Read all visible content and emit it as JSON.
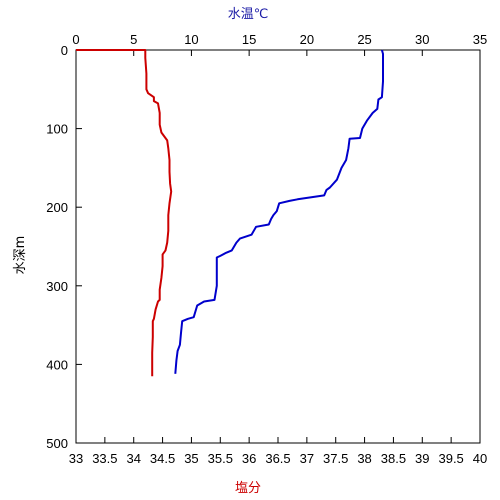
{
  "chart_data": {
    "type": "line",
    "axes": {
      "top": {
        "label": "水温℃",
        "label_color": "#1a1aa6",
        "range": [
          0,
          35
        ],
        "ticks": [
          "0",
          "5",
          "10",
          "15",
          "20",
          "25",
          "30",
          "35"
        ]
      },
      "bottom": {
        "label": "塩分",
        "label_color": "#cc0000",
        "range": [
          33,
          40
        ],
        "ticks": [
          "33",
          "33.5",
          "34",
          "34.5",
          "35",
          "35.5",
          "36",
          "36.5",
          "37",
          "37.5",
          "38",
          "38.5",
          "39",
          "39.5",
          "40"
        ]
      },
      "left": {
        "label": "水深m",
        "label_color": "#000000",
        "range": [
          0,
          500
        ],
        "inverted": true,
        "ticks": [
          "0",
          "100",
          "200",
          "300",
          "400",
          "500"
        ]
      }
    },
    "grid": false,
    "series": [
      {
        "quantity": "temperature",
        "axis": "top",
        "color": "#0000cc",
        "points": [
          [
            26.5,
            0
          ],
          [
            26.6,
            5
          ],
          [
            26.6,
            20
          ],
          [
            26.6,
            40
          ],
          [
            26.5,
            60
          ],
          [
            26.2,
            63
          ],
          [
            26.1,
            75
          ],
          [
            25.7,
            80
          ],
          [
            25.2,
            90
          ],
          [
            24.8,
            100
          ],
          [
            24.6,
            112
          ],
          [
            23.7,
            113
          ],
          [
            23.6,
            125
          ],
          [
            23.4,
            140
          ],
          [
            23.0,
            150
          ],
          [
            22.6,
            165
          ],
          [
            22.0,
            175
          ],
          [
            21.7,
            178
          ],
          [
            21.5,
            185
          ],
          [
            19.2,
            190
          ],
          [
            18.5,
            192
          ],
          [
            17.6,
            195
          ],
          [
            17.4,
            205
          ],
          [
            17.1,
            210
          ],
          [
            16.9,
            215
          ],
          [
            16.7,
            222
          ],
          [
            15.6,
            225
          ],
          [
            15.2,
            235
          ],
          [
            14.2,
            240
          ],
          [
            13.9,
            245
          ],
          [
            13.7,
            250
          ],
          [
            13.5,
            255
          ],
          [
            13.0,
            258
          ],
          [
            12.5,
            262
          ],
          [
            12.2,
            264
          ],
          [
            12.2,
            280
          ],
          [
            12.2,
            300
          ],
          [
            12.0,
            318
          ],
          [
            11.1,
            320
          ],
          [
            10.5,
            325
          ],
          [
            10.2,
            340
          ],
          [
            9.7,
            342
          ],
          [
            9.2,
            345
          ],
          [
            9.1,
            360
          ],
          [
            9.0,
            375
          ],
          [
            8.8,
            383
          ],
          [
            8.7,
            395
          ],
          [
            8.6,
            412
          ]
        ]
      },
      {
        "quantity": "salinity",
        "axis": "bottom",
        "color": "#cc0000",
        "points": [
          [
            33.0,
            0
          ],
          [
            34.2,
            0
          ],
          [
            34.2,
            10
          ],
          [
            34.22,
            30
          ],
          [
            34.22,
            50
          ],
          [
            34.25,
            55
          ],
          [
            34.35,
            60
          ],
          [
            34.35,
            65
          ],
          [
            34.42,
            68
          ],
          [
            34.45,
            80
          ],
          [
            34.45,
            95
          ],
          [
            34.48,
            105
          ],
          [
            34.58,
            115
          ],
          [
            34.6,
            125
          ],
          [
            34.62,
            140
          ],
          [
            34.62,
            155
          ],
          [
            34.63,
            170
          ],
          [
            34.65,
            180
          ],
          [
            34.62,
            195
          ],
          [
            34.6,
            210
          ],
          [
            34.6,
            230
          ],
          [
            34.58,
            245
          ],
          [
            34.55,
            255
          ],
          [
            34.5,
            260
          ],
          [
            34.5,
            275
          ],
          [
            34.48,
            290
          ],
          [
            34.45,
            305
          ],
          [
            34.45,
            318
          ],
          [
            34.42,
            320
          ],
          [
            34.38,
            330
          ],
          [
            34.35,
            342
          ],
          [
            34.33,
            345
          ],
          [
            34.33,
            365
          ],
          [
            34.32,
            385
          ],
          [
            34.32,
            400
          ],
          [
            34.32,
            415
          ]
        ]
      }
    ]
  }
}
